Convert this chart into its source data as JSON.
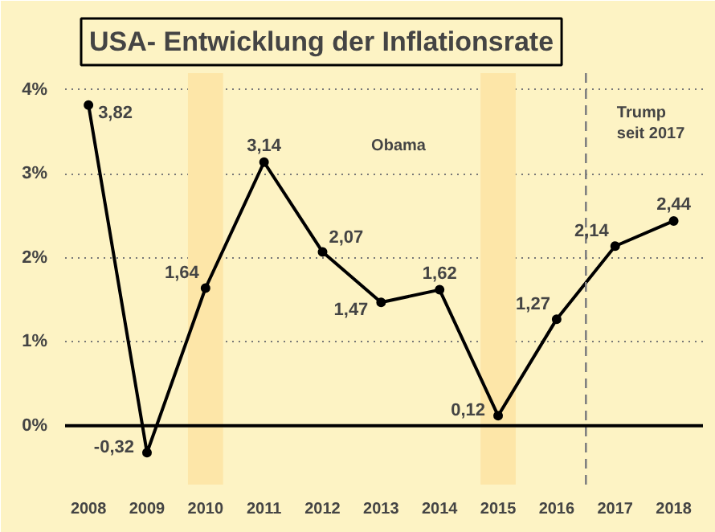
{
  "chart_data": {
    "type": "line",
    "title": "USA- Entwicklung der Inflationsrate",
    "x": [
      2008,
      2009,
      2010,
      2011,
      2012,
      2013,
      2014,
      2015,
      2016,
      2017,
      2018
    ],
    "values": [
      3.82,
      -0.32,
      1.64,
      3.14,
      2.07,
      1.47,
      1.62,
      0.12,
      1.27,
      2.14,
      2.44
    ],
    "value_labels": [
      "3,82",
      "-0,32",
      "1,64",
      "3,14",
      "2,07",
      "1,47",
      "1,62",
      "0,12",
      "1,27",
      "2,14",
      "2,44"
    ],
    "color": "#000000",
    "marker": "circle",
    "line_style": "solid",
    "xlim": [
      2007.6,
      2018.5
    ],
    "xticks": [
      2008,
      2009,
      2010,
      2011,
      2012,
      2013,
      2014,
      2015,
      2016,
      2017,
      2018
    ],
    "ylim": [
      -0.7,
      4.2
    ],
    "yticks": [
      {
        "value": 0,
        "label": "0%"
      },
      {
        "value": 1,
        "label": "1%"
      },
      {
        "value": 2,
        "label": "2%"
      },
      {
        "value": 3,
        "label": "3%"
      },
      {
        "value": 4,
        "label": "4%"
      }
    ],
    "grid": "y",
    "bands": [
      {
        "axis": "x",
        "from": 2009.7,
        "to": 2010.3,
        "color": "#fde6a8"
      },
      {
        "axis": "x",
        "from": 2014.7,
        "to": 2015.3,
        "color": "#fde6a8"
      }
    ],
    "ref_lines": [
      {
        "axis": "x",
        "value": 2016.5,
        "color": "#808080",
        "line_style": "dashed"
      },
      {
        "axis": "y",
        "value": 0,
        "color": "#000000",
        "line_style": "solid"
      }
    ],
    "annotations": [
      "Obama",
      "Trump\nseit 2017"
    ]
  }
}
